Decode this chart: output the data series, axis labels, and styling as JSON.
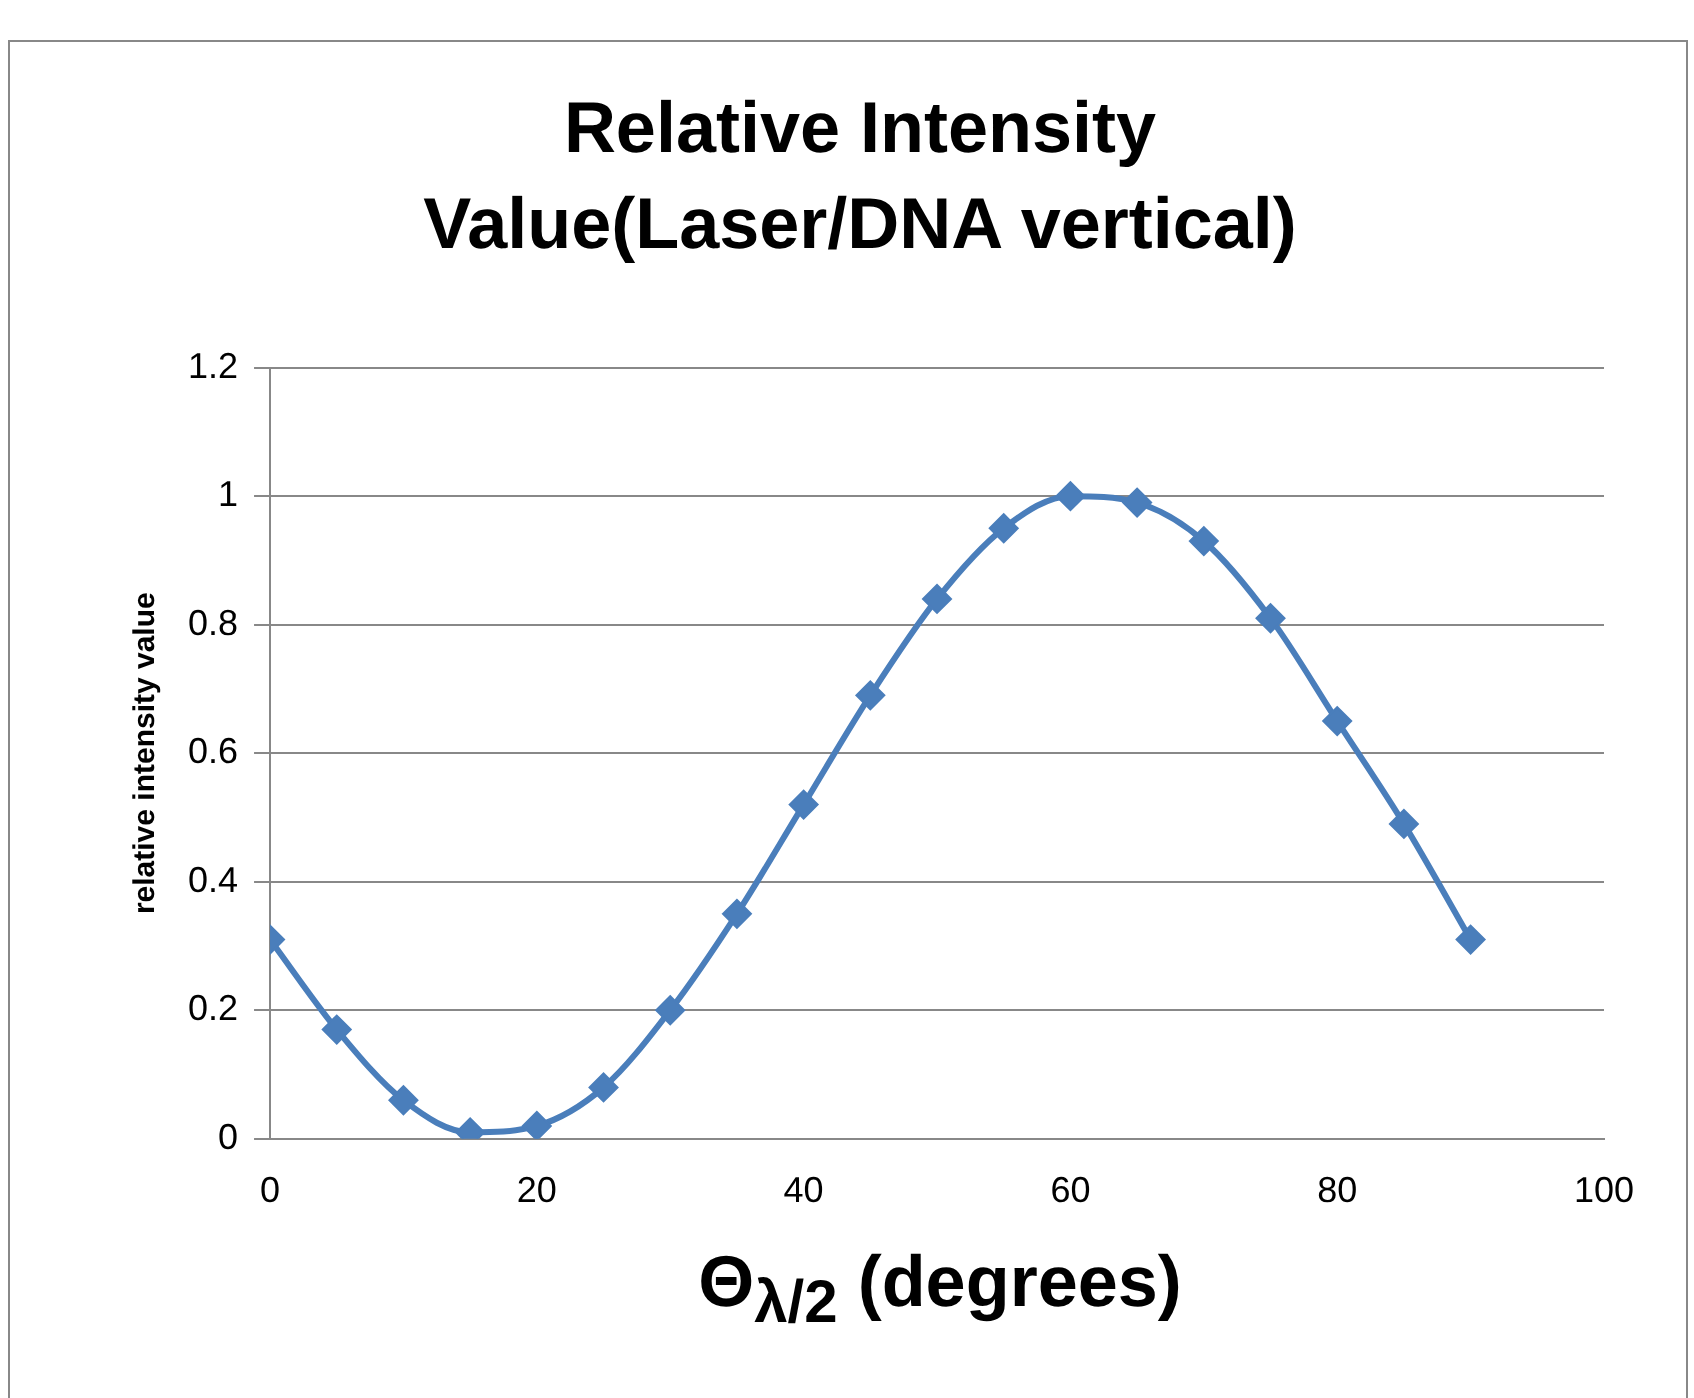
{
  "chart_data": {
    "type": "line",
    "title": "Relative Intensity Value(Laser/DNA vertical)",
    "xlabel": "Θ$_{λ/2}$ (degrees)",
    "ylabel": "relative intensity value",
    "x": [
      0,
      5,
      10,
      15,
      20,
      25,
      30,
      35,
      40,
      45,
      50,
      55,
      60,
      65,
      70,
      75,
      80,
      85,
      90
    ],
    "series": [
      {
        "color": "#4a7ebb",
        "values": [
          0.31,
          0.17,
          0.06,
          0.01,
          0.02,
          0.08,
          0.2,
          0.35,
          0.52,
          0.69,
          0.84,
          0.95,
          1.0,
          0.99,
          0.93,
          0.81,
          0.65,
          0.49,
          0.31
        ]
      }
    ],
    "xlim": [
      0,
      100
    ],
    "xticks": [
      0,
      20,
      40,
      60,
      80,
      100
    ],
    "ylim": [
      0,
      1.2
    ],
    "yticks": [
      0,
      0.2,
      0.4,
      0.6,
      0.8,
      1,
      1.2
    ],
    "grid": "y",
    "legend": false,
    "marker": "diamond",
    "line_style": "solid"
  }
}
